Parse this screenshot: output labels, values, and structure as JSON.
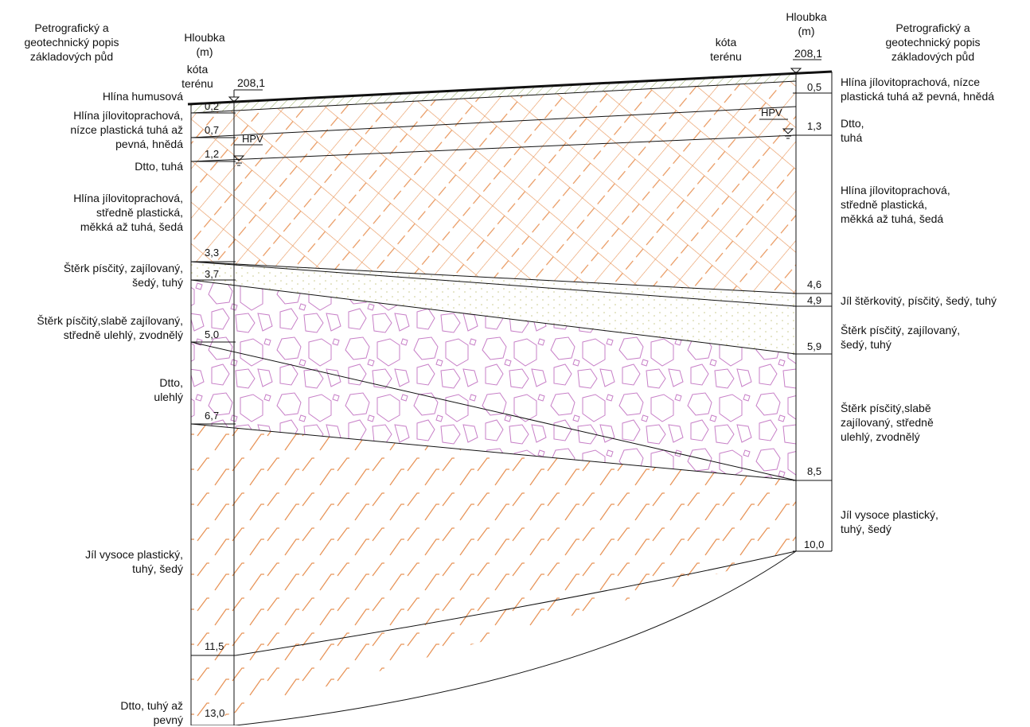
{
  "left": {
    "header": [
      "Petrografický a",
      "geotechnický popis",
      "základových půd"
    ],
    "depth_header": [
      "Hloubka",
      "(m)"
    ],
    "terrain_label": [
      "kóta",
      "terénu"
    ],
    "terrain_level": "208,1",
    "hpv": "HPV",
    "depths": [
      "0,2",
      "0,7",
      "1,2",
      "3,3",
      "3,7",
      "5,0",
      "6,7",
      "11,5",
      "13,0"
    ],
    "layers": [
      [
        "Hlína humusová"
      ],
      [
        "Hlína jílovitoprachová,",
        "nízce plastická tuhá až",
        "pevná, hnědá"
      ],
      [
        "Dtto, tuhá"
      ],
      [
        "Hlína jílovitoprachová,",
        "středně plastická,",
        "měkká až tuhá, šedá"
      ],
      [
        "Štěrk písčitý, zajílovaný,",
        "šedý, tuhý"
      ],
      [
        "Štěrk písčitý,slabě zajílovaný,",
        "středně ulehlý, zvodnělý"
      ],
      [
        "Dtto,",
        "ulehlý"
      ],
      [
        "Jíl vysoce plastický,",
        "tuhý, šedý"
      ],
      [
        "Dtto, tuhý až",
        "pevný"
      ]
    ]
  },
  "right": {
    "header": [
      "Petrografický a",
      "geotechnický popis",
      "základových půd"
    ],
    "depth_header": [
      "Hloubka",
      "(m)"
    ],
    "terrain_label": [
      "kóta",
      "terénu"
    ],
    "terrain_level": "208,1",
    "hpv": "HPV",
    "depths": [
      "0,5",
      "1,3",
      "4,6",
      "4,9",
      "5,9",
      "8,5",
      "10,0"
    ],
    "layers": [
      [
        "Hlína jílovitoprachová, nízce",
        "plastická tuhá až pevná, hnědá"
      ],
      [
        "Dtto,",
        "tuhá"
      ],
      [
        "Hlína jílovitoprachová,",
        "středně plastická,",
        "měkká až tuhá, šedá"
      ],
      [
        "Jíl štěrkovitý, písčitý, šedý, tuhý"
      ],
      [
        "Štěrk písčitý, zajílovaný,",
        "šedý, tuhý"
      ],
      [
        "Štěrk písčitý,slabě",
        "zajílovaný, středně",
        "ulehlý, zvodnělý"
      ],
      [
        "Jíl vysoce plastický,",
        "tuhý, šedý"
      ]
    ]
  },
  "colors": {
    "loam_hatch": "#e8955a",
    "gravel_outline": "#c77fc7",
    "clay_hatch": "#e8955a",
    "humus_hatch": "#7a9a3a",
    "sand_dots": "#c8c88a",
    "line": "#111111"
  }
}
